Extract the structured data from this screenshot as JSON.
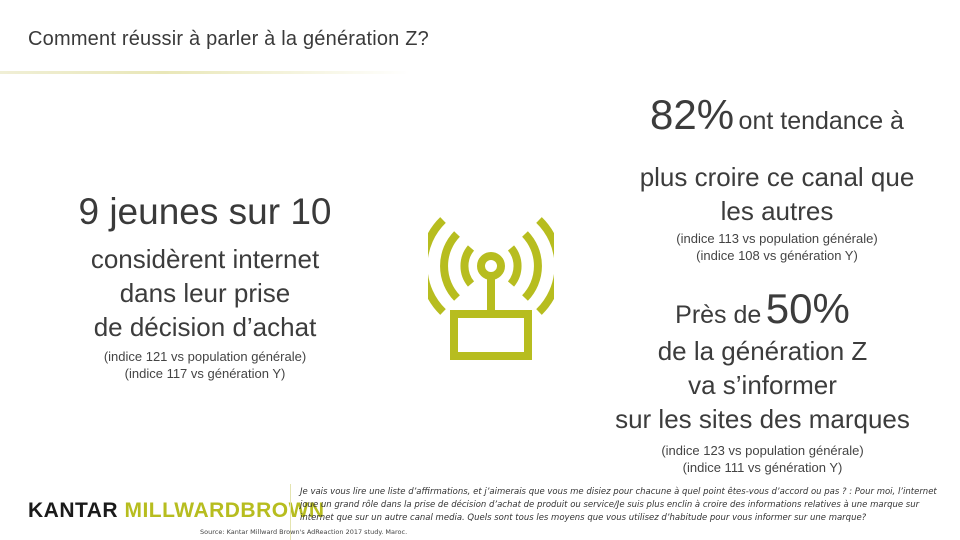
{
  "slide": {
    "title": "Comment réussir à parler à la génération Z?"
  },
  "left": {
    "stat": "9 jeunes sur 10",
    "lines": [
      "considèrent internet",
      "dans leur prise",
      "de décision d’achat"
    ],
    "indices": [
      "(indice 121 vs population générale)",
      "(indice 117 vs génération Y)"
    ]
  },
  "right_top": {
    "number": "82%",
    "number_suffix": "ont tendance à",
    "lines": [
      "plus croire ce canal que",
      "les autres"
    ],
    "indices": [
      "(indice 113 vs population générale)",
      "(indice 108 vs génération Y)"
    ]
  },
  "right_bottom": {
    "prefix": "Près de",
    "number": "50%",
    "lines": [
      "de la génération Z",
      "va s’informer",
      "sur les sites des marques"
    ],
    "indices": [
      "(indice 123 vs population générale)",
      "(indice 111 vs génération Y)"
    ]
  },
  "icon": {
    "name": "antenna-icon",
    "color": "#b7bd1f"
  },
  "footer": {
    "logo_left": "KANTAR",
    "logo_right": "MILLWARDBROWN",
    "question": "Je vais vous lire une liste d’affirmations, et j’aimerais que vous me disiez pour chacune à quel point êtes-vous d’accord ou pas ? : Pour moi, l’internet joue un grand rôle dans la prise de décision d’achat de produit ou service/Je suis plus enclin à croire des informations relatives à une marque sur internet que sur un autre canal media. Quels sont tous les moyens que vous utilisez d’habitude pour vous informer sur une marque?",
    "source": "Source: Kantar Millward Brown's AdReaction 2017 study. Maroc."
  }
}
